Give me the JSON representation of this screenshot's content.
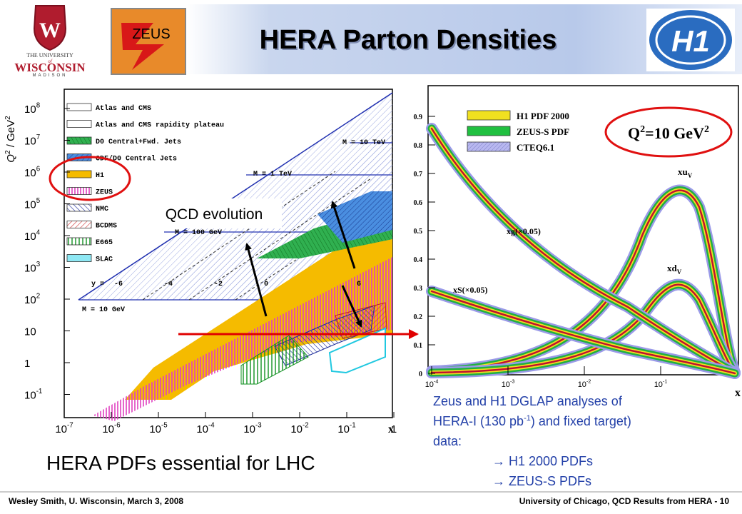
{
  "header": {
    "title": "HERA Parton Densities",
    "left_logo": {
      "line1": "THE UNIVERSITY",
      "line2": "of",
      "line3": "WISCONSIN",
      "line4": "MADISON"
    },
    "center_logo": "ZEUS",
    "right_logo": "H1"
  },
  "left_plot": {
    "y_label": {
      "base": "Q",
      "exp": "2",
      "unit": " / GeV",
      "unit_exp": "2"
    },
    "y_ticks": [
      {
        "base": "10",
        "exp": "8"
      },
      {
        "base": "10",
        "exp": "7"
      },
      {
        "base": "10",
        "exp": "6"
      },
      {
        "base": "10",
        "exp": "5"
      },
      {
        "base": "10",
        "exp": "4"
      },
      {
        "base": "10",
        "exp": "3"
      },
      {
        "base": "10",
        "exp": "2"
      },
      {
        "base": "10"
      },
      {
        "base": "1"
      },
      {
        "base": "10",
        "exp": "-1"
      }
    ],
    "x_ticks": [
      {
        "base": "10",
        "exp": "-7"
      },
      {
        "base": "10",
        "exp": "-6"
      },
      {
        "base": "10",
        "exp": "-5"
      },
      {
        "base": "10",
        "exp": "-4"
      },
      {
        "base": "10",
        "exp": "-3"
      },
      {
        "base": "10",
        "exp": "-2"
      },
      {
        "base": "10",
        "exp": "-1"
      },
      {
        "base": "1"
      }
    ],
    "x_label": "x",
    "legend": [
      "Atlas and CMS",
      "Atlas and CMS rapidity plateau",
      "D0 Central+Fwd. Jets",
      "CDF/D0 Central Jets",
      "H1",
      "ZEUS",
      "NMC",
      "BCDMS",
      "E665",
      "SLAC"
    ],
    "annotations": {
      "m_10tev": "M = 10 TeV",
      "m_1tev": "M = 1 TeV",
      "m_100gev": "M = 100 GeV",
      "m_10gev": "M = 10 GeV",
      "rapidity": "y =",
      "rapidity_values": [
        "-6",
        "-4",
        "-2",
        "0",
        "6"
      ]
    },
    "callout": "QCD evolution"
  },
  "right_plot": {
    "y_ticks": [
      "0",
      "0.1",
      "0.2",
      "0.3",
      "0.4",
      "0.5",
      "0.6",
      "0.7",
      "0.8",
      "0.9"
    ],
    "x_ticks": [
      {
        "base": "10",
        "exp": "-4"
      },
      {
        "base": "10",
        "exp": "-3"
      },
      {
        "base": "10",
        "exp": "-2"
      },
      {
        "base": "10",
        "exp": "-1"
      }
    ],
    "x_label": "x",
    "legend": [
      "H1 PDF 2000",
      "ZEUS-S PDF",
      "CTEQ6.1"
    ],
    "q2": {
      "base": "Q",
      "exp": "2",
      "rest": "=10 GeV",
      "exp2": "2"
    },
    "curves": {
      "xuv": {
        "base": "xu",
        "sub": "V"
      },
      "xdv": {
        "base": "xd",
        "sub": "V"
      },
      "xg": "xg(×0.05)",
      "xs": "xS(×0.05)"
    }
  },
  "notes": {
    "line1": "Zeus and H1 DGLAP analyses of",
    "line2a": "HERA-I (130 pb",
    "line2sup": "-1",
    "line2b": ") and fixed target)",
    "line3": "data:",
    "bullets": [
      "→ H1 2000 PDFs",
      "→ ZEUS-S PDFs"
    ]
  },
  "headline": "HERA PDFs essential for LHC",
  "footer": {
    "left": "Wesley Smith, U. Wisconsin, March 3, 2008",
    "right": "University of Chicago, QCD Results from HERA - 10"
  }
}
